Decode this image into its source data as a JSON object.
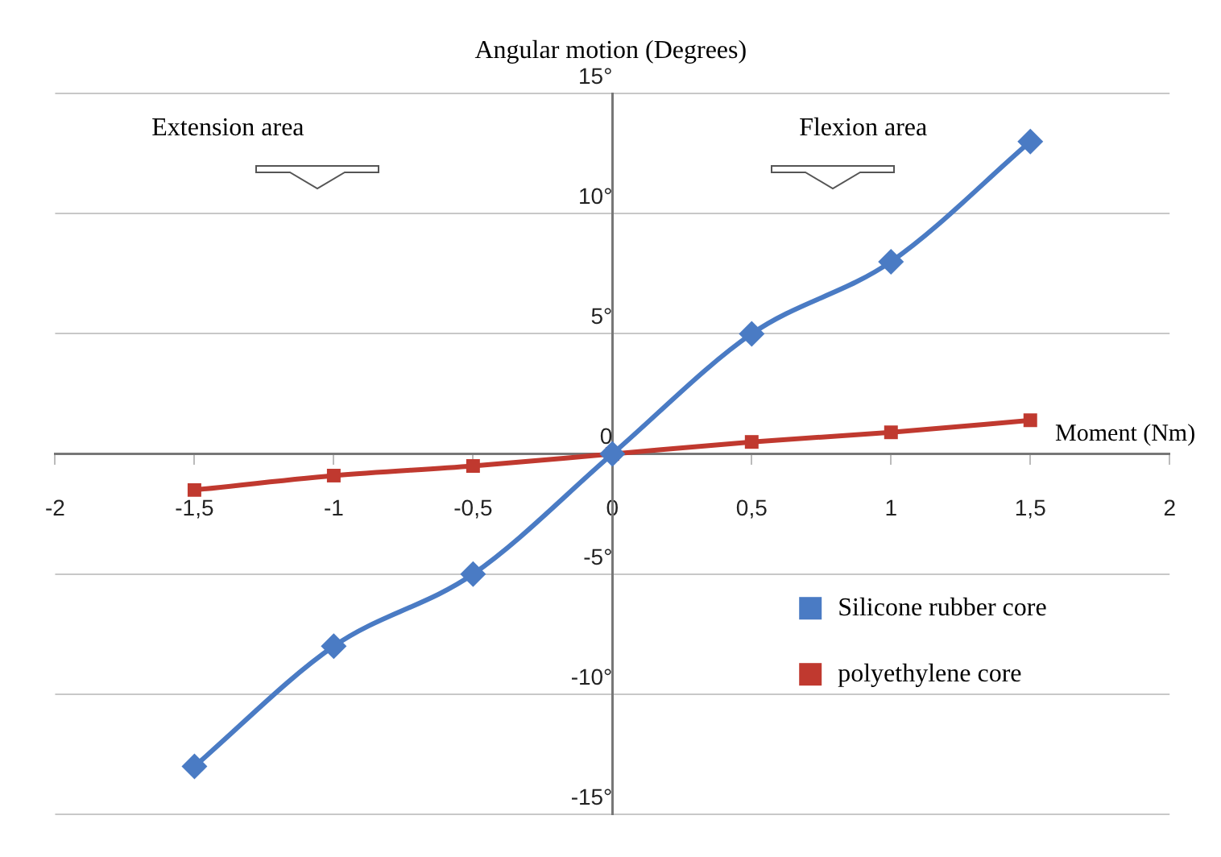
{
  "chart_data": {
    "type": "line",
    "xlabel": "Moment (Nm)",
    "ylabel": "Angular motion (Degrees)",
    "x": [
      -1.5,
      -1,
      -0.5,
      0,
      0.5,
      1,
      1.5
    ],
    "series": [
      {
        "name": "Silicone rubber core",
        "color": "#4a7bc4",
        "marker": "diamond",
        "values": [
          -13,
          -8,
          -5,
          0,
          5,
          8,
          13
        ]
      },
      {
        "name": "polyethylene core",
        "color": "#c0392f",
        "marker": "square",
        "values": [
          -1.5,
          -0.9,
          -0.5,
          0,
          0.5,
          0.9,
          1.4
        ]
      }
    ],
    "xlim": [
      -2,
      2
    ],
    "xticks": [
      -2,
      {
        "value": -1.5,
        "label": "-1,5"
      },
      -1,
      {
        "value": -0.5,
        "label": "-0,5"
      },
      0,
      {
        "value": 0.5,
        "label": "0,5"
      },
      1,
      {
        "value": 1.5,
        "label": "1,5"
      },
      2
    ],
    "ylim": [
      -15,
      15
    ],
    "yticks": [
      {
        "value": -15,
        "label": "-15°"
      },
      {
        "value": -10,
        "label": "-10°"
      },
      {
        "value": -5,
        "label": "-5°"
      },
      0,
      {
        "value": 5,
        "label": "5°"
      },
      {
        "value": 10,
        "label": "10°"
      },
      {
        "value": 15,
        "label": "15°"
      }
    ],
    "grid": "y",
    "legend": "bottom right",
    "annotations": [
      "Extension area",
      "Flexion area"
    ]
  }
}
